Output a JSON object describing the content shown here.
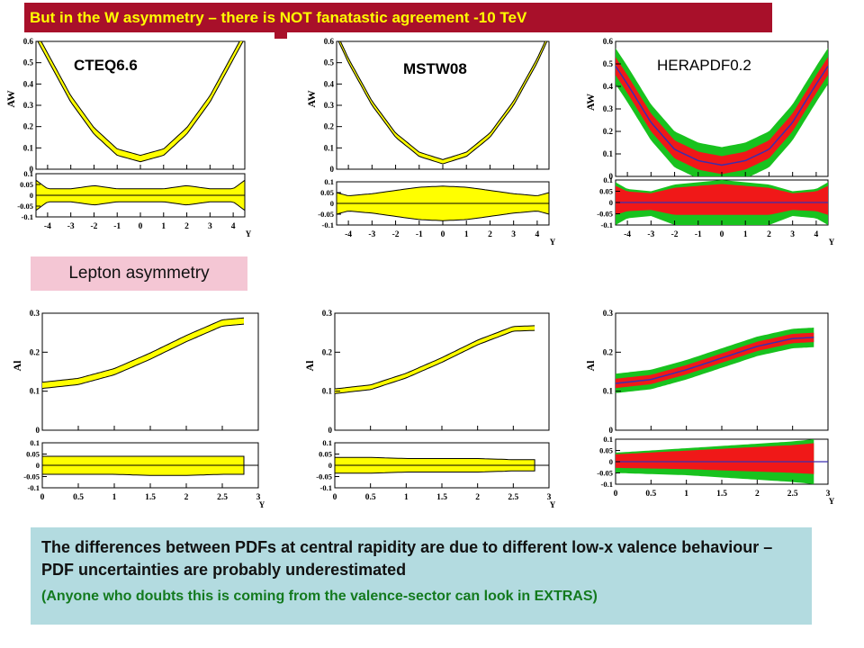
{
  "header": {
    "title": "But in the W asymmetry – there is NOT fanatastic agreement  -10 TeV"
  },
  "labels": {
    "lepton_asymmetry": "Lepton asymmetry"
  },
  "footer": {
    "main_text": "The differences between PDFs at central rapidity are due to different low-x valence behaviour – PDF uncertainties are probably underestimated",
    "note_text": "(Anyone who doubts this is coming from the valence-sector can look in EXTRAS)"
  },
  "colors": {
    "header_bg": "#a8102a",
    "header_text": "#ffff00",
    "label_bg": "#f4c6d4",
    "footer_bg": "#b3dbe0",
    "footer_note": "#137a1e",
    "band_yellow": "#ffff00",
    "band_green": "#18c21e",
    "band_red": "#f01818",
    "central_blue": "#3a2fb0"
  },
  "chart_data": [
    {
      "type": "line",
      "name": "CTEQ6.6",
      "print_name": true,
      "style": "yellow",
      "ylabel": "A_W",
      "xlabel": "Y",
      "xlim": [
        -4.5,
        4.5
      ],
      "ylim": [
        0,
        0.6
      ],
      "yticks": [
        "0",
        "0.1",
        "0.2",
        "0.3",
        "0.4",
        "0.5",
        "0.6"
      ],
      "xticks": [
        "-4",
        "-3",
        "-2",
        "-1",
        "0",
        "1",
        "2",
        "3",
        "4"
      ],
      "series": [
        {
          "x": [
            -4.5,
            -4,
            -3,
            -2,
            -1,
            0,
            1,
            2,
            3,
            4,
            4.5
          ],
          "values": [
            0.63,
            0.53,
            0.33,
            0.18,
            0.08,
            0.05,
            0.08,
            0.18,
            0.33,
            0.53,
            0.63
          ],
          "band": 0.015
        }
      ],
      "ratio": {
        "ylim": [
          -0.1,
          0.1
        ],
        "yticks": [
          "-0.1",
          "-0.05",
          "0",
          "0.05",
          "0.1"
        ],
        "x": [
          -4.5,
          -4,
          -3,
          -2,
          -1,
          0,
          1,
          2,
          3,
          4,
          4.5
        ],
        "upper": [
          0.07,
          0.03,
          0.03,
          0.045,
          0.03,
          0.03,
          0.03,
          0.045,
          0.03,
          0.03,
          0.07
        ],
        "lower": [
          -0.07,
          -0.03,
          -0.03,
          -0.045,
          -0.03,
          -0.03,
          -0.03,
          -0.045,
          -0.03,
          -0.03,
          -0.07
        ]
      }
    },
    {
      "type": "line",
      "name": "MSTW08",
      "print_name": true,
      "style": "yellow",
      "ylabel": "A_W",
      "xlabel": "Y",
      "xlim": [
        -4.5,
        4.5
      ],
      "ylim": [
        0,
        0.6
      ],
      "yticks": [
        "0",
        "0.1",
        "0.2",
        "0.3",
        "0.4",
        "0.5",
        "0.6"
      ],
      "xticks": [
        "-4",
        "-3",
        "-2",
        "-1",
        "0",
        "1",
        "2",
        "3",
        "4"
      ],
      "series": [
        {
          "x": [
            -4.5,
            -4,
            -3,
            -2,
            -1,
            0,
            1,
            2,
            3,
            4,
            4.5
          ],
          "values": [
            0.63,
            0.51,
            0.31,
            0.16,
            0.07,
            0.035,
            0.07,
            0.16,
            0.31,
            0.51,
            0.63
          ],
          "band": 0.01
        }
      ],
      "ratio": {
        "ylim": [
          -0.1,
          0.1
        ],
        "yticks": [
          "-0.1",
          "-0.05",
          "0",
          "0.05",
          "0.1"
        ],
        "x": [
          -4.5,
          -4,
          -3,
          -2,
          -1,
          0,
          1,
          2,
          3,
          4,
          4.5
        ],
        "upper": [
          0.05,
          0.035,
          0.045,
          0.06,
          0.075,
          0.08,
          0.075,
          0.06,
          0.045,
          0.035,
          0.05
        ],
        "lower": [
          -0.05,
          -0.035,
          -0.045,
          -0.06,
          -0.075,
          -0.08,
          -0.075,
          -0.06,
          -0.045,
          -0.035,
          -0.05
        ]
      }
    },
    {
      "type": "line",
      "name": "HERAPDF0.2",
      "print_name": true,
      "style": "hera",
      "ylabel": "A_W",
      "xlabel": "Y",
      "xlim": [
        -4.5,
        4.5
      ],
      "ylim": [
        0,
        0.6
      ],
      "yticks": [
        "0",
        "0.1",
        "0.2",
        "0.3",
        "0.4",
        "0.5",
        "0.6"
      ],
      "xticks": [
        "-4",
        "-3",
        "-2",
        "-1",
        "0",
        "1",
        "2",
        "3",
        "4"
      ],
      "series": [
        {
          "x": [
            -4.5,
            -4,
            -3,
            -2,
            -1,
            0,
            1,
            2,
            3,
            4,
            4.5
          ],
          "values": [
            0.49,
            0.41,
            0.24,
            0.12,
            0.07,
            0.05,
            0.07,
            0.12,
            0.24,
            0.41,
            0.49
          ],
          "band_red": 0.04,
          "band_green": 0.08
        }
      ],
      "ratio": {
        "ylim": [
          -0.1,
          0.1
        ],
        "yticks": [
          "-0.1",
          "-0.05",
          "0",
          "0.05",
          "0.1"
        ],
        "x": [
          -4.5,
          -4,
          -3,
          -2,
          -1,
          0,
          1,
          2,
          3,
          4,
          4.5
        ],
        "upper": [
          0.09,
          0.06,
          0.05,
          0.08,
          0.09,
          0.1,
          0.09,
          0.08,
          0.05,
          0.06,
          0.09
        ],
        "lower": [
          -0.1,
          -0.07,
          -0.06,
          -0.1,
          -0.1,
          -0.1,
          -0.1,
          -0.1,
          -0.06,
          -0.07,
          -0.1
        ]
      }
    },
    {
      "type": "line",
      "name": "CTEQ6.6",
      "print_name": false,
      "style": "yellow",
      "ylabel": "A_l",
      "xlabel": "Y",
      "xlim": [
        0,
        3
      ],
      "ylim": [
        0,
        0.3
      ],
      "yticks": [
        "0",
        "0.1",
        "0.2",
        "0.3"
      ],
      "xticks": [
        "0",
        "0.5",
        "1",
        "1.5",
        "2",
        "2.5",
        "3"
      ],
      "series": [
        {
          "x": [
            0,
            0.5,
            1,
            1.5,
            2,
            2.5,
            2.8
          ],
          "values": [
            0.115,
            0.125,
            0.15,
            0.19,
            0.235,
            0.275,
            0.28
          ],
          "band": 0.008
        }
      ],
      "ratio": {
        "ylim": [
          -0.1,
          0.1
        ],
        "yticks": [
          "-0.1",
          "-0.05",
          "0",
          "0.05",
          "0.1"
        ],
        "x": [
          0,
          0.5,
          1,
          1.5,
          2,
          2.5,
          2.8
        ],
        "upper": [
          0.04,
          0.04,
          0.04,
          0.04,
          0.04,
          0.04,
          0.04
        ],
        "lower": [
          -0.04,
          -0.04,
          -0.04,
          -0.045,
          -0.045,
          -0.04,
          -0.04
        ]
      }
    },
    {
      "type": "line",
      "name": "MSTW08",
      "print_name": false,
      "style": "yellow",
      "ylabel": "A_l",
      "xlabel": "Y",
      "xlim": [
        0,
        3
      ],
      "ylim": [
        0,
        0.3
      ],
      "yticks": [
        "0",
        "0.1",
        "0.2",
        "0.3"
      ],
      "xticks": [
        "0",
        "0.5",
        "1",
        "1.5",
        "2",
        "2.5",
        "3"
      ],
      "series": [
        {
          "x": [
            0,
            0.5,
            1,
            1.5,
            2,
            2.5,
            2.8
          ],
          "values": [
            0.1,
            0.11,
            0.14,
            0.18,
            0.225,
            0.26,
            0.262
          ],
          "band": 0.006
        }
      ],
      "ratio": {
        "ylim": [
          -0.1,
          0.1
        ],
        "yticks": [
          "-0.1",
          "-0.05",
          "0",
          "0.05",
          "0.1"
        ],
        "x": [
          0,
          0.5,
          1,
          1.5,
          2,
          2.5,
          2.8
        ],
        "upper": [
          0.035,
          0.035,
          0.03,
          0.03,
          0.03,
          0.025,
          0.025
        ],
        "lower": [
          -0.035,
          -0.035,
          -0.03,
          -0.03,
          -0.03,
          -0.025,
          -0.025
        ]
      }
    },
    {
      "type": "line",
      "name": "HERAPDF0.2",
      "print_name": false,
      "style": "hera",
      "ylabel": "A_l",
      "xlabel": "Y",
      "xlim": [
        0,
        3
      ],
      "ylim": [
        0,
        0.3
      ],
      "yticks": [
        "0",
        "0.1",
        "0.2",
        "0.3"
      ],
      "xticks": [
        "0",
        "0.5",
        "1",
        "1.5",
        "2",
        "2.5",
        "3"
      ],
      "series": [
        {
          "x": [
            0,
            0.5,
            1,
            1.5,
            2,
            2.5,
            2.8
          ],
          "values": [
            0.12,
            0.13,
            0.155,
            0.185,
            0.215,
            0.235,
            0.238
          ],
          "band_red": 0.012,
          "band_green": 0.025
        }
      ],
      "ratio": {
        "ylim": [
          -0.1,
          0.1
        ],
        "yticks": [
          "-0.1",
          "-0.05",
          "0",
          "0.05",
          "0.1"
        ],
        "x": [
          0,
          0.5,
          1,
          1.5,
          2,
          2.5,
          2.8
        ],
        "upper": [
          0.04,
          0.05,
          0.06,
          0.07,
          0.08,
          0.09,
          0.1
        ],
        "lower": [
          -0.05,
          -0.055,
          -0.06,
          -0.07,
          -0.08,
          -0.09,
          -0.1
        ]
      }
    }
  ]
}
